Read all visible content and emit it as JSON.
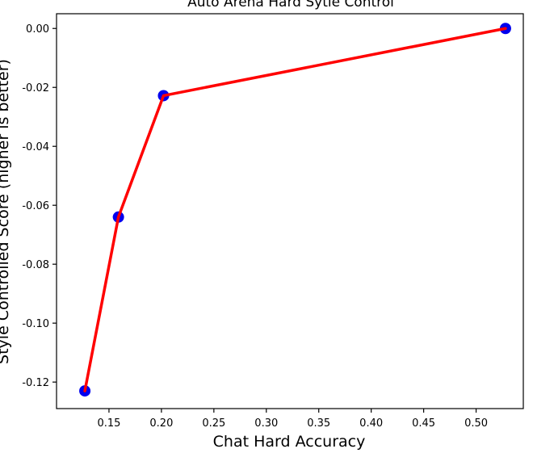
{
  "chart_data": {
    "type": "line",
    "title": "Auto Arena Hard Sytle Control",
    "xlabel": "Chat Hard Accuracy",
    "ylabel": "Style Controlled Score (higher is better)",
    "xlim": [
      0.1,
      0.545
    ],
    "ylim": [
      -0.129,
      0.005
    ],
    "x_ticks": [
      0.15,
      0.2,
      0.25,
      0.3,
      0.35,
      0.4,
      0.45,
      0.5
    ],
    "x_tick_labels": [
      "0.15",
      "0.20",
      "0.25",
      "0.30",
      "0.35",
      "0.40",
      "0.45",
      "0.50"
    ],
    "y_ticks": [
      0.0,
      -0.02,
      -0.04,
      -0.06,
      -0.08,
      -0.1,
      -0.12
    ],
    "y_tick_labels": [
      "0.00",
      "-0.02",
      "-0.04",
      "-0.06",
      "-0.08",
      "-0.10",
      "-0.12"
    ],
    "grid": false,
    "series": [
      {
        "x": [
          0.127,
          0.159,
          0.202,
          0.528
        ],
        "y": [
          -0.123,
          -0.064,
          -0.0228,
          0.0
        ],
        "line_color": "#ff0000",
        "marker_color": "#0000ee"
      }
    ]
  }
}
